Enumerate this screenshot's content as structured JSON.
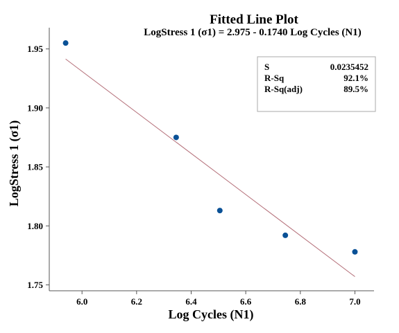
{
  "chart_data": {
    "type": "scatter",
    "title": "Fitted Line Plot",
    "subtitle": "LogStress 1 (σ1) = 2.975 - 0.1740 Log Cycles (N1)",
    "xlabel": "Log Cycles (N1)",
    "ylabel": "LogStress 1 (σ1)",
    "xlim": [
      5.88,
      7.07
    ],
    "ylim": [
      1.745,
      1.968
    ],
    "x_ticks": [
      {
        "value": 6.0,
        "label": "6.0"
      },
      {
        "value": 6.2,
        "label": "6.2"
      },
      {
        "value": 6.4,
        "label": "6.4"
      },
      {
        "value": 6.6,
        "label": "6.6"
      },
      {
        "value": 6.8,
        "label": "6.8"
      },
      {
        "value": 7.0,
        "label": "7.0"
      }
    ],
    "y_ticks": [
      {
        "value": 1.75,
        "label": "1.75"
      },
      {
        "value": 1.8,
        "label": "1.80"
      },
      {
        "value": 1.85,
        "label": "1.85"
      },
      {
        "value": 1.9,
        "label": "1.90"
      },
      {
        "value": 1.95,
        "label": "1.95"
      }
    ],
    "points": [
      {
        "x": 5.94,
        "y": 1.955
      },
      {
        "x": 6.345,
        "y": 1.875
      },
      {
        "x": 6.505,
        "y": 1.813
      },
      {
        "x": 6.745,
        "y": 1.792
      },
      {
        "x": 7.0,
        "y": 1.778
      }
    ],
    "fit": {
      "intercept": 2.975,
      "slope": -0.174,
      "x_start": 5.94,
      "x_end": 7.0
    },
    "stats": [
      {
        "label": "S",
        "value": "0.0235452"
      },
      {
        "label": "R-Sq",
        "value": "92.1%"
      },
      {
        "label": "R-Sq(adj)",
        "value": "89.5%"
      }
    ],
    "grid": false,
    "colors": {
      "points": "#0a5196",
      "fit_line": "#b5707a",
      "axis": "#555555",
      "stats_border": "#aaaaaa"
    }
  }
}
